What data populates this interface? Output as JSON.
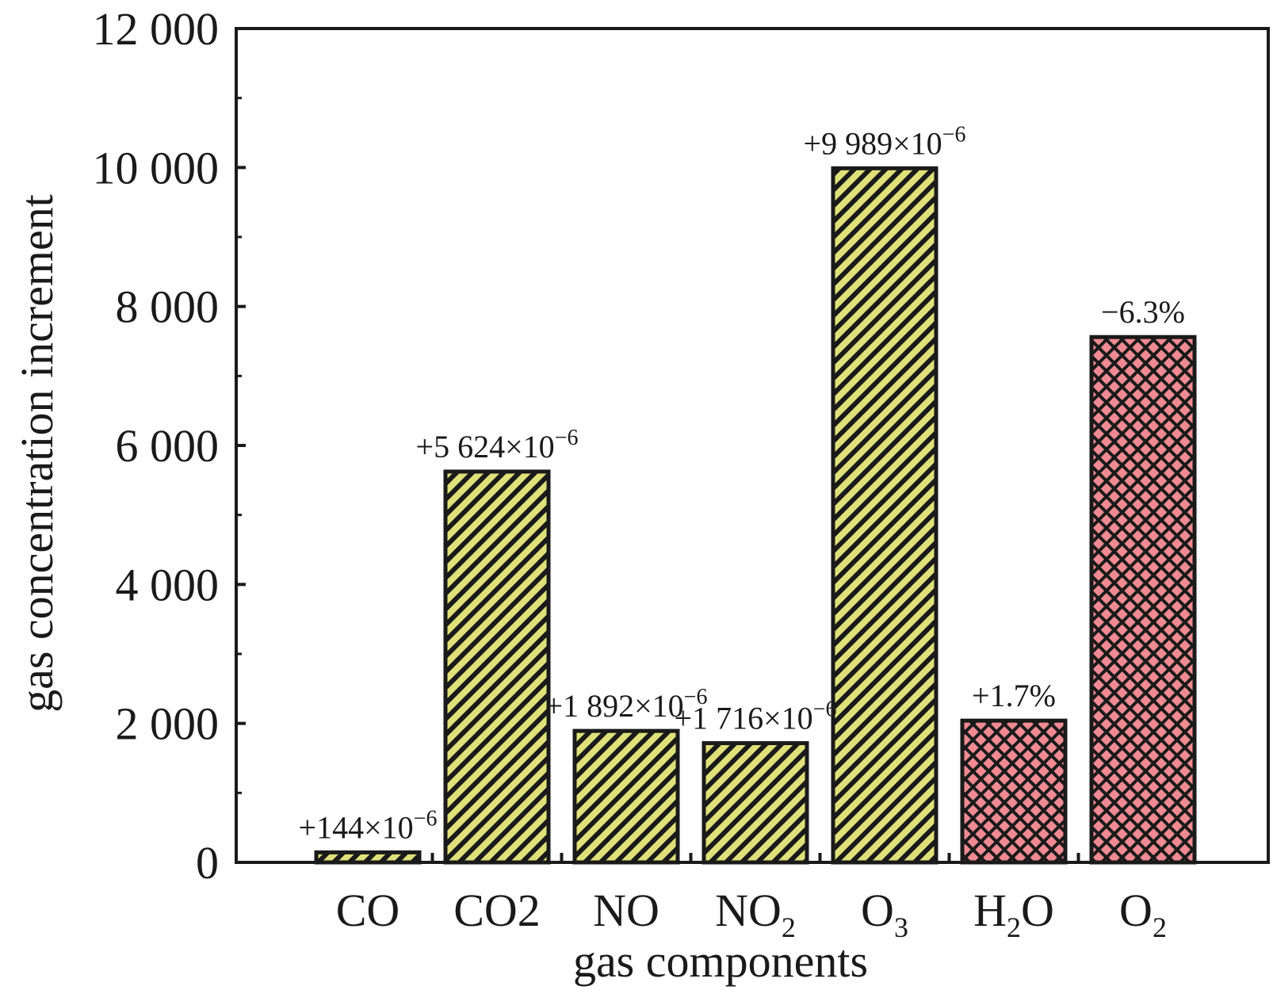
{
  "chart_data": {
    "type": "bar",
    "title": "",
    "xlabel": "gas components",
    "ylabel": "gas concentration increment",
    "ylim": [
      0,
      12000
    ],
    "yticks": [
      0,
      2000,
      4000,
      6000,
      8000,
      10000,
      12000
    ],
    "ytick_labels": [
      "0",
      "2 000",
      "4 000",
      "6 000",
      "8 000",
      "10 000",
      "12 000"
    ],
    "grid": false,
    "legend": "none",
    "categories": [
      {
        "main": "CO",
        "sub": ""
      },
      {
        "main": "CO2",
        "sub": ""
      },
      {
        "main": "NO",
        "sub": ""
      },
      {
        "main": "NO",
        "sub": "2"
      },
      {
        "main": "O",
        "sub": "3"
      },
      {
        "main": "H",
        "sub": "2",
        "tail": "O"
      },
      {
        "main": "O",
        "sub": "2"
      }
    ],
    "values": [
      144,
      5624,
      1892,
      1716,
      9989,
      2040,
      7560
    ],
    "data_labels": [
      {
        "text": "+144×10",
        "exp": "−6"
      },
      {
        "text": "+5 624×10",
        "exp": "−6"
      },
      {
        "text": "+1 892×10",
        "exp": "−6"
      },
      {
        "text": "+1 716×10",
        "exp": "−6"
      },
      {
        "text": "+9 989×10",
        "exp": "−6"
      },
      {
        "text": "+1.7%",
        "exp": ""
      },
      {
        "text": "−6.3%",
        "exp": ""
      }
    ],
    "patterns": [
      "hatch",
      "hatch",
      "hatch",
      "hatch",
      "hatch",
      "crosshatch",
      "crosshatch"
    ],
    "colors": {
      "hatch_fill": "#e0e07a",
      "hatch_line": "#1a1a1a",
      "crosshatch_fill": "#f08a92",
      "crosshatch_line": "#1a1a1a",
      "axis": "#1a1a1a"
    }
  }
}
